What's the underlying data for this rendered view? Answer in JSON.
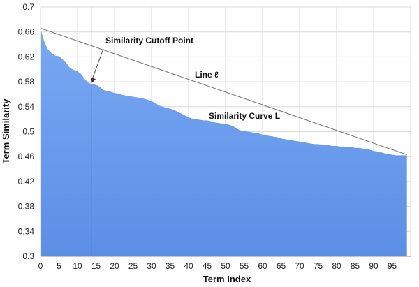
{
  "chart_data": {
    "type": "area",
    "xlabel": "Term Index",
    "ylabel": "Term Similarity",
    "xlim": [
      0,
      99
    ],
    "ylim": [
      0.3,
      0.7
    ],
    "x_ticks": [
      0,
      5,
      10,
      15,
      20,
      25,
      30,
      35,
      40,
      45,
      50,
      55,
      60,
      65,
      70,
      75,
      80,
      85,
      90,
      95
    ],
    "y_ticks": [
      0.3,
      0.34,
      0.38,
      0.42,
      0.46,
      0.5,
      0.54,
      0.58,
      0.62,
      0.66,
      0.7
    ],
    "y_tick_labels": [
      "0.3",
      "0.34",
      "0.38",
      "0.42",
      "0.46",
      "0.5",
      "0.54",
      "0.58",
      "0.62",
      "0.66",
      "0.7"
    ],
    "grid": true,
    "fill_color": "#5b8fe6",
    "fill_color_top": "#79a8f3",
    "series": [
      {
        "name": "Similarity Curve L",
        "x": [
          0,
          0.5,
          1,
          1.5,
          2,
          3,
          4,
          5,
          6,
          7,
          8,
          9,
          10,
          11,
          12,
          13,
          14,
          15,
          16,
          17,
          18,
          19,
          20,
          21,
          22,
          23,
          24,
          25,
          26,
          27,
          28,
          29,
          30,
          31,
          32,
          33,
          34,
          35,
          36,
          37,
          38,
          39,
          40,
          41,
          42,
          43,
          44,
          45,
          46,
          47,
          48,
          49,
          50,
          51,
          52,
          53,
          54,
          55,
          56,
          57,
          58,
          59,
          60,
          61,
          62,
          63,
          64,
          65,
          66,
          67,
          68,
          69,
          70,
          71,
          72,
          73,
          74,
          75,
          76,
          77,
          78,
          79,
          80,
          81,
          82,
          83,
          84,
          85,
          86,
          87,
          88,
          89,
          90,
          91,
          92,
          93,
          94,
          95,
          96,
          97,
          98,
          99
        ],
        "values": [
          0.665,
          0.655,
          0.645,
          0.638,
          0.632,
          0.626,
          0.622,
          0.621,
          0.616,
          0.61,
          0.602,
          0.599,
          0.597,
          0.592,
          0.584,
          0.578,
          0.576,
          0.575,
          0.572,
          0.567,
          0.565,
          0.564,
          0.562,
          0.561,
          0.559,
          0.558,
          0.557,
          0.556,
          0.555,
          0.554,
          0.553,
          0.551,
          0.549,
          0.546,
          0.542,
          0.54,
          0.538,
          0.537,
          0.535,
          0.532,
          0.529,
          0.526,
          0.523,
          0.521,
          0.52,
          0.519,
          0.518,
          0.518,
          0.517,
          0.515,
          0.514,
          0.513,
          0.512,
          0.511,
          0.509,
          0.505,
          0.502,
          0.501,
          0.5,
          0.499,
          0.498,
          0.497,
          0.495,
          0.494,
          0.493,
          0.492,
          0.491,
          0.489,
          0.488,
          0.487,
          0.486,
          0.485,
          0.484,
          0.483,
          0.482,
          0.481,
          0.48,
          0.48,
          0.479,
          0.479,
          0.478,
          0.477,
          0.477,
          0.476,
          0.476,
          0.475,
          0.475,
          0.474,
          0.474,
          0.473,
          0.472,
          0.471,
          0.469,
          0.468,
          0.467,
          0.465,
          0.464,
          0.463,
          0.462,
          0.462,
          0.462,
          0.462
        ]
      }
    ],
    "line_l": {
      "label": "Line ℓ",
      "from": [
        0,
        0.666
      ],
      "to": [
        99,
        0.463
      ]
    },
    "cutoff": {
      "label": "Similarity Cutoff Point",
      "x": 13.7,
      "y": 0.577
    },
    "annotations": [
      {
        "text": "Similarity Cutoff Point"
      },
      {
        "text": "Line ℓ"
      },
      {
        "text": "Similarity Curve L"
      }
    ]
  }
}
